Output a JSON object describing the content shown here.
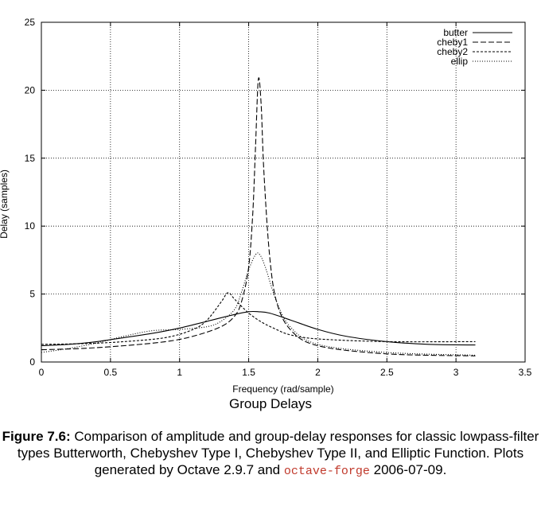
{
  "chart_data": {
    "type": "line",
    "title": "Group Delays",
    "xlabel": "Frequency (rad/sample)",
    "ylabel": "Delay (samples)",
    "xlim": [
      0,
      3.5
    ],
    "ylim": [
      0,
      25
    ],
    "xticks": [
      "0",
      "0.5",
      "1",
      "1.5",
      "2",
      "2.5",
      "3",
      "3.5"
    ],
    "yticks": [
      "0",
      "5",
      "10",
      "15",
      "20",
      "25"
    ],
    "grid": true,
    "legend_position": "top-right",
    "series": [
      {
        "name": "butter",
        "dash": "none",
        "x": [
          0,
          0.2,
          0.4,
          0.6,
          0.8,
          1.0,
          1.2,
          1.4,
          1.5,
          1.57,
          1.65,
          1.8,
          2.0,
          2.2,
          2.5,
          2.8,
          3.14
        ],
        "y": [
          1.2,
          1.3,
          1.5,
          1.8,
          2.1,
          2.5,
          3.0,
          3.5,
          3.7,
          3.7,
          3.6,
          3.1,
          2.4,
          1.9,
          1.5,
          1.3,
          1.25
        ]
      },
      {
        "name": "cheby1",
        "dash": "7,3",
        "x": [
          0,
          0.3,
          0.6,
          0.9,
          1.1,
          1.3,
          1.4,
          1.45,
          1.5,
          1.53,
          1.55,
          1.57,
          1.59,
          1.61,
          1.65,
          1.7,
          1.8,
          2.0,
          2.5,
          3.14
        ],
        "y": [
          0.9,
          1.0,
          1.2,
          1.5,
          1.9,
          2.6,
          3.4,
          4.5,
          7.0,
          11.0,
          16.0,
          20.8,
          19.0,
          14.0,
          8.0,
          4.5,
          2.4,
          1.2,
          0.6,
          0.45
        ]
      },
      {
        "name": "cheby2",
        "dash": "3,2",
        "x": [
          0,
          0.3,
          0.6,
          0.9,
          1.1,
          1.2,
          1.3,
          1.35,
          1.4,
          1.5,
          1.6,
          1.7,
          1.8,
          2.0,
          2.5,
          3.14
        ],
        "y": [
          1.3,
          1.35,
          1.5,
          1.8,
          2.4,
          3.1,
          4.4,
          5.1,
          4.6,
          3.6,
          2.9,
          2.4,
          2.0,
          1.7,
          1.5,
          1.5
        ]
      },
      {
        "name": "ellip",
        "dash": "1,2",
        "x": [
          0,
          0.2,
          0.4,
          0.6,
          0.8,
          1.0,
          1.2,
          1.3,
          1.4,
          1.45,
          1.5,
          1.55,
          1.58,
          1.62,
          1.7,
          1.8,
          2.0,
          2.5,
          3.14
        ],
        "y": [
          0.7,
          1.0,
          1.4,
          1.9,
          2.3,
          2.4,
          2.6,
          3.0,
          3.9,
          5.2,
          6.8,
          7.9,
          7.9,
          7.0,
          4.5,
          2.6,
          1.3,
          0.7,
          0.5
        ]
      }
    ]
  },
  "caption": {
    "figure_label": "Figure 7.6:",
    "text_before_code": " Comparison of amplitude and group-delay responses for classic lowpass-filter types Butterworth, Chebyshev Type I, Chebyshev Type II, and Elliptic Function. Plots generated by Octave 2.9.7 and ",
    "code": "octave-forge",
    "text_after_code": " 2006-07-09."
  }
}
